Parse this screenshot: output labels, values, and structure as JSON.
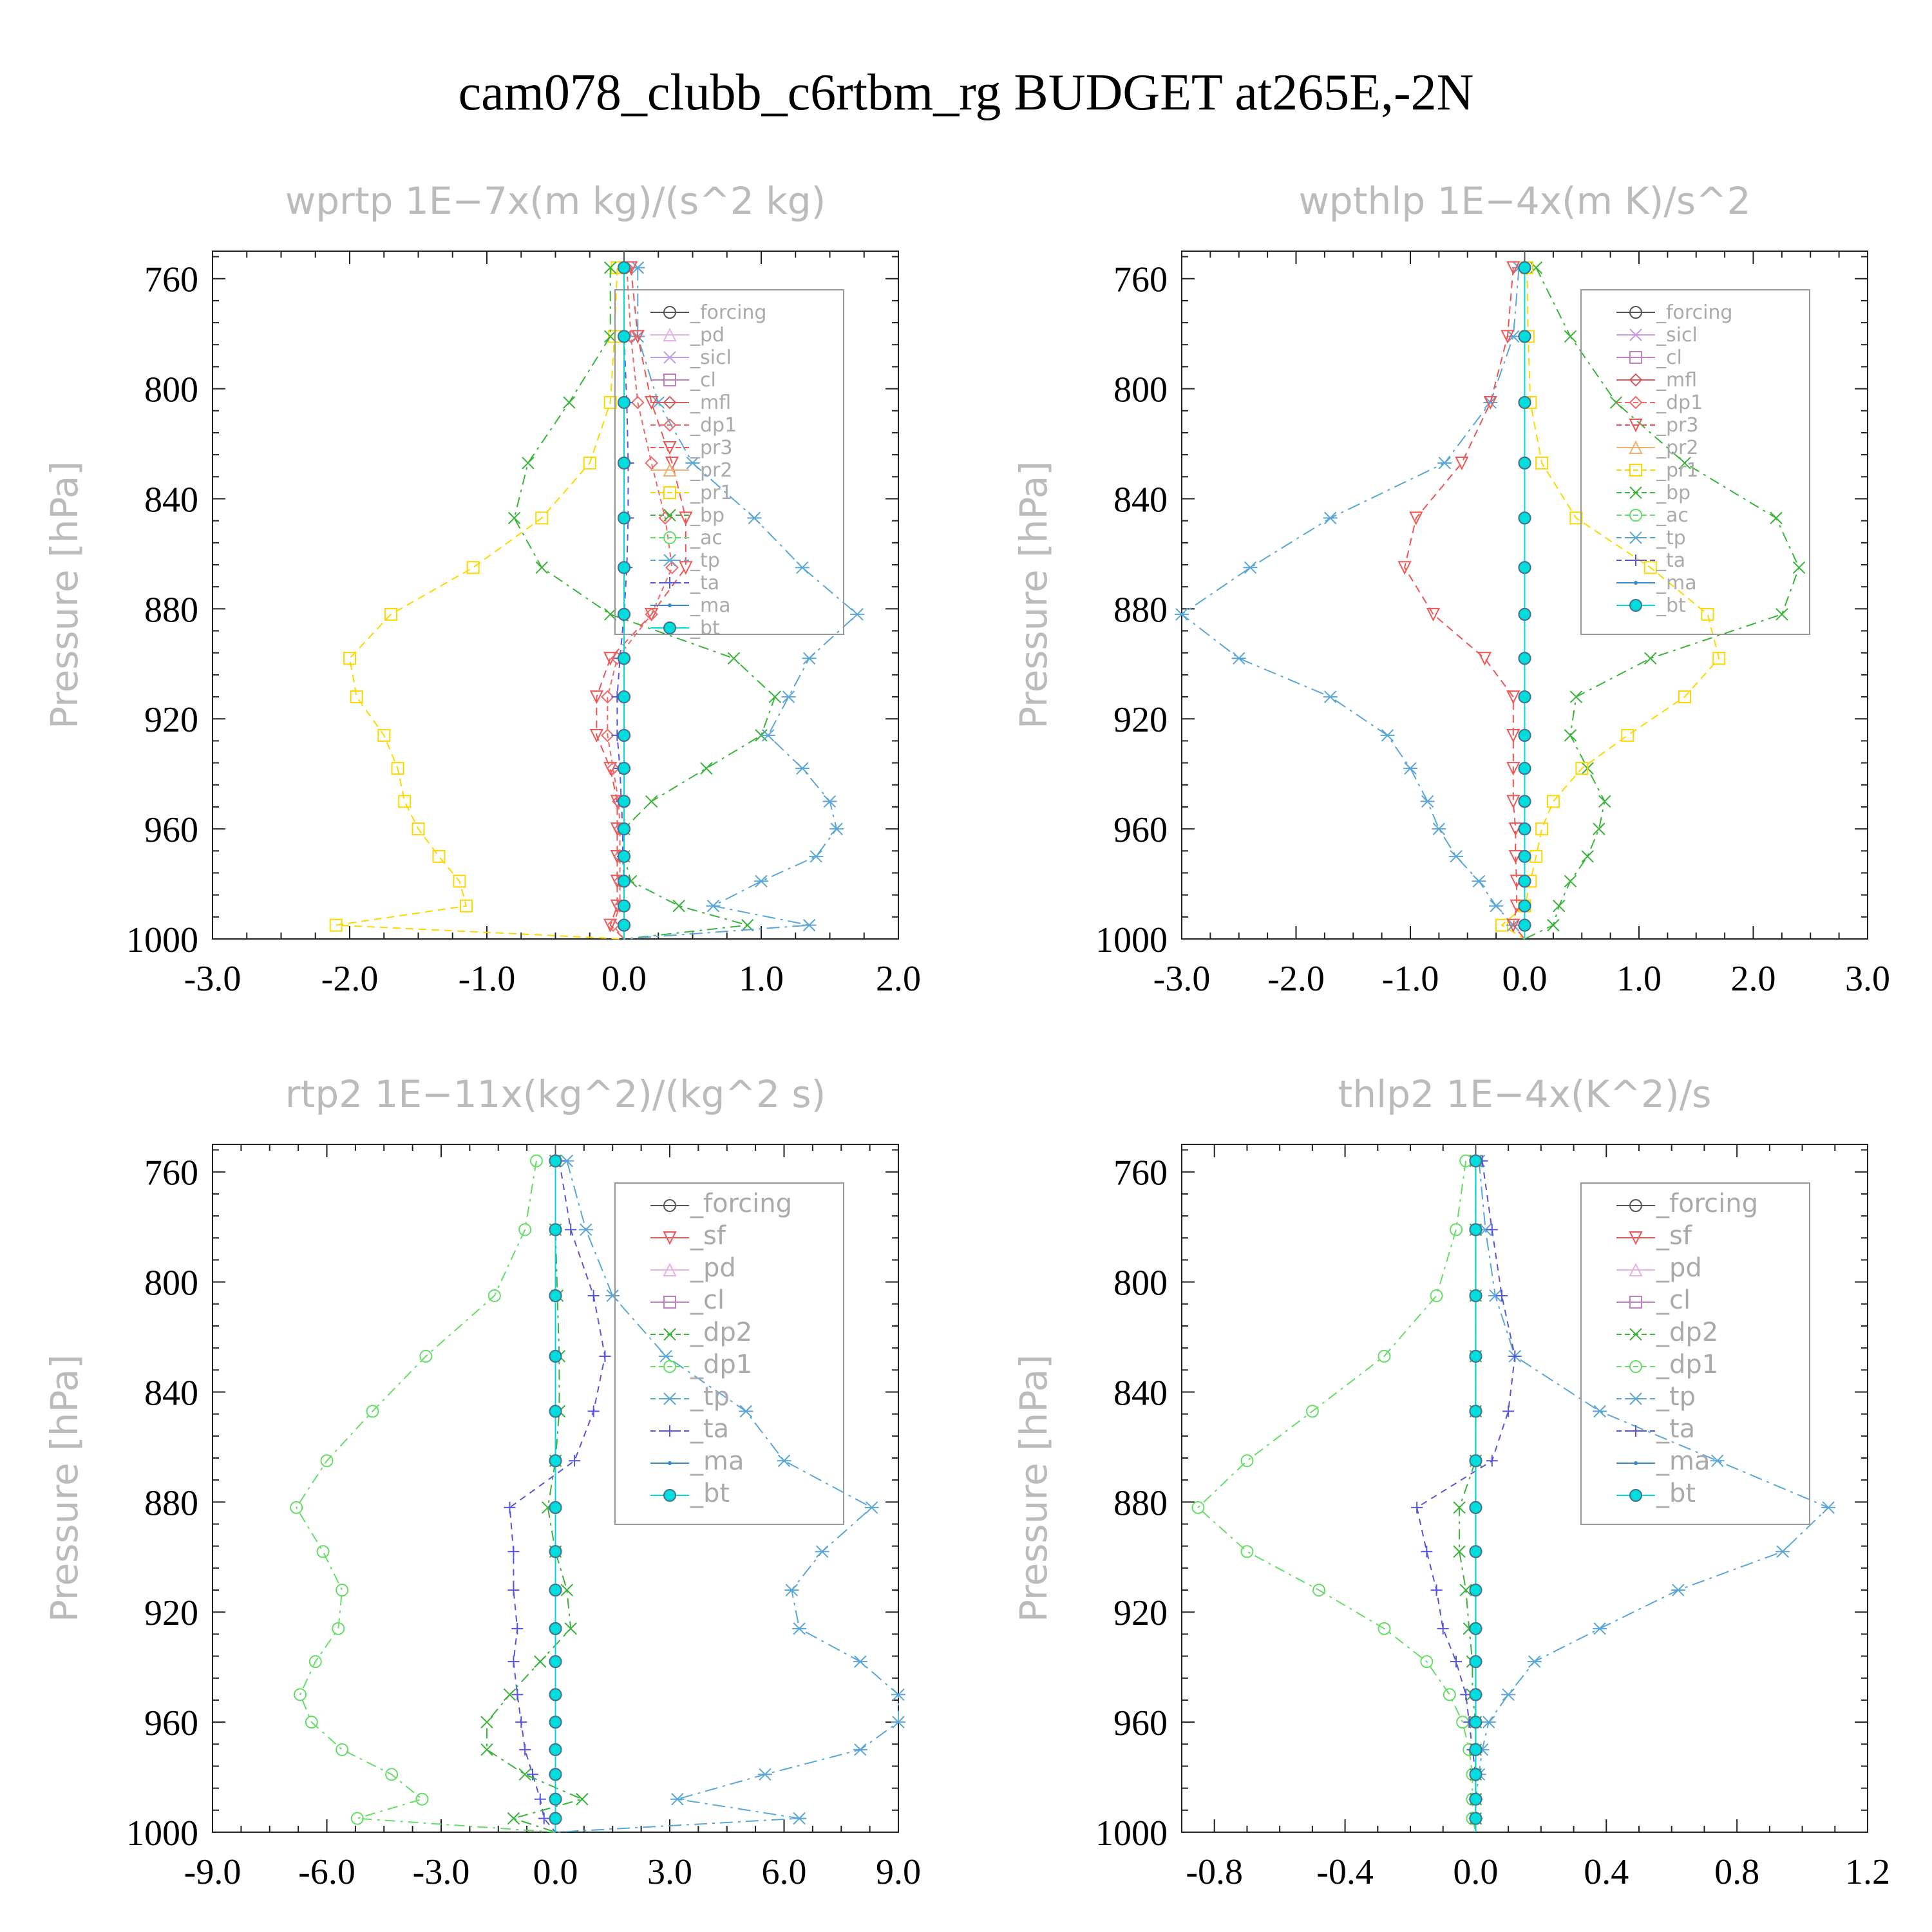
{
  "title": "cam078_clubb_c6rtbm_rg  BUDGET at265E,-2N",
  "colors": {
    "forcing": "#555555",
    "pd": "#e6b3e6",
    "sicl": "#c39be6",
    "cl": "#c080c0",
    "mfl": "#d06060",
    "dp1": "#ee6a6a",
    "pr3": "#ee5555",
    "pr2": "#f0b070",
    "pr1": "#ffd700",
    "bp": "#39b339",
    "ac": "#66dd66",
    "tp": "#5aa6d6",
    "ta": "#5555dd",
    "ma": "#3a8ac8",
    "bt": "#00dddd",
    "sf": "#ee5555",
    "dp2": "#39b339",
    "frame": "#222222",
    "label": "#bbbbbb"
  },
  "levels": [
    756,
    781,
    805,
    827,
    847,
    865,
    882,
    898,
    912,
    926,
    938,
    950,
    960,
    970,
    979,
    988,
    995,
    1000
  ],
  "chart_data": [
    {
      "type": "line",
      "title": "wprtp   1E−7x(m kg)/(s^2 kg)",
      "ylabel": "Pressure [hPa]",
      "xlim": [
        -3,
        2
      ],
      "ylim": [
        1000,
        750
      ],
      "xticks": [
        "-3.0",
        "-2.0",
        "-1.0",
        "0.0",
        "1.0",
        "2.0"
      ],
      "yticks": [
        "760",
        "800",
        "840",
        "880",
        "920",
        "960",
        "1000"
      ],
      "legend": [
        "_forcing",
        "_pd",
        "_sicl",
        "_cl",
        "_mfl",
        "_dp1",
        "_pr3",
        "_pr2",
        "_pr1",
        "_bp",
        "_ac",
        "_tp",
        "_ta",
        "_ma",
        "_bt"
      ],
      "legend_keys": [
        "forcing",
        "pd",
        "sicl",
        "cl",
        "mfl",
        "dp1",
        "pr3",
        "pr2",
        "pr1",
        "bp",
        "ac",
        "tp",
        "ta",
        "ma",
        "bt"
      ],
      "series": [
        {
          "key": "pr1",
          "values": [
            -0.05,
            -0.07,
            -0.1,
            -0.25,
            -0.6,
            -1.1,
            -1.7,
            -2.0,
            -1.95,
            -1.75,
            -1.65,
            -1.6,
            -1.5,
            -1.35,
            -1.2,
            -1.15,
            -2.1,
            0.0
          ]
        },
        {
          "key": "bp",
          "values": [
            -0.1,
            -0.1,
            -0.4,
            -0.7,
            -0.8,
            -0.6,
            -0.1,
            0.8,
            1.1,
            1.0,
            0.6,
            0.2,
            0.0,
            0.0,
            0.05,
            0.4,
            0.9,
            0.0
          ]
        },
        {
          "key": "tp",
          "values": [
            0.1,
            0.1,
            0.25,
            0.5,
            0.95,
            1.3,
            1.7,
            1.35,
            1.2,
            1.05,
            1.3,
            1.5,
            1.55,
            1.4,
            1.0,
            0.65,
            1.35,
            0.0
          ]
        },
        {
          "key": "pr3",
          "values": [
            0.05,
            0.1,
            0.2,
            0.35,
            0.45,
            0.45,
            0.2,
            -0.1,
            -0.2,
            -0.2,
            -0.1,
            -0.05,
            -0.05,
            -0.05,
            -0.05,
            -0.05,
            -0.1,
            0.0
          ]
        },
        {
          "key": "dp1",
          "values": [
            0.02,
            0.05,
            0.1,
            0.2,
            0.3,
            0.35,
            0.2,
            -0.05,
            -0.12,
            -0.12,
            -0.08,
            -0.04,
            -0.03,
            -0.03,
            -0.03,
            -0.03,
            -0.08,
            0.0
          ]
        },
        {
          "key": "ta",
          "values": [
            0.0,
            0.0,
            0.02,
            0.03,
            0.03,
            0.02,
            0.0,
            -0.03,
            -0.05,
            -0.05,
            -0.03,
            -0.02,
            -0.01,
            -0.01,
            0.0,
            0.0,
            0.0,
            0.0
          ]
        },
        {
          "key": "forcing",
          "values": [
            0.0,
            0.0,
            0.0,
            0.0,
            0.0,
            0.0,
            0.0,
            0.0,
            0.0,
            0.0,
            0.0,
            0.0,
            0.0,
            0.0,
            0.0,
            0.0,
            0.0,
            0.0
          ]
        },
        {
          "key": "bt",
          "values": [
            0.0,
            0.0,
            0.0,
            0.0,
            0.0,
            0.0,
            0.0,
            0.0,
            0.0,
            0.0,
            0.0,
            0.0,
            0.0,
            0.0,
            0.0,
            0.0,
            0.0,
            0.0
          ]
        }
      ]
    },
    {
      "type": "line",
      "title": "wpthlp   1E−4x(m K)/s^2",
      "ylabel": "Pressure [hPa]",
      "xlim": [
        -3,
        3
      ],
      "ylim": [
        1000,
        750
      ],
      "xticks": [
        "-3.0",
        "-2.0",
        "-1.0",
        "0.0",
        "1.0",
        "2.0",
        "3.0"
      ],
      "yticks": [
        "760",
        "800",
        "840",
        "880",
        "920",
        "960",
        "1000"
      ],
      "legend": [
        "_forcing",
        "_sicl",
        "_cl",
        "_mfl",
        "_dp1",
        "_pr3",
        "_pr2",
        "_pr1",
        "_bp",
        "_ac",
        "_tp",
        "_ta",
        "_ma",
        "_bt"
      ],
      "legend_keys": [
        "forcing",
        "sicl",
        "cl",
        "mfl",
        "dp1",
        "pr3",
        "pr2",
        "pr1",
        "bp",
        "ac",
        "tp",
        "ta",
        "ma",
        "bt"
      ],
      "series": [
        {
          "key": "bp",
          "values": [
            0.1,
            0.4,
            0.8,
            1.4,
            2.2,
            2.4,
            2.25,
            1.1,
            0.45,
            0.4,
            0.55,
            0.7,
            0.65,
            0.55,
            0.4,
            0.3,
            0.25,
            0.0
          ]
        },
        {
          "key": "pr1",
          "values": [
            0.02,
            0.03,
            0.05,
            0.15,
            0.45,
            1.1,
            1.6,
            1.7,
            1.4,
            0.9,
            0.5,
            0.25,
            0.15,
            0.1,
            0.05,
            0.0,
            -0.2,
            0.0
          ]
        },
        {
          "key": "tp",
          "values": [
            -0.05,
            -0.1,
            -0.3,
            -0.7,
            -1.7,
            -2.4,
            -3.0,
            -2.5,
            -1.7,
            -1.2,
            -1.0,
            -0.85,
            -0.75,
            -0.6,
            -0.4,
            -0.25,
            -0.1,
            0.0
          ]
        },
        {
          "key": "pr3",
          "values": [
            -0.1,
            -0.15,
            -0.3,
            -0.55,
            -0.95,
            -1.05,
            -0.8,
            -0.35,
            -0.1,
            -0.1,
            -0.1,
            -0.1,
            -0.08,
            -0.08,
            -0.07,
            -0.07,
            -0.1,
            0.0
          ]
        },
        {
          "key": "forcing",
          "values": [
            0.0,
            0.0,
            0.0,
            0.0,
            0.0,
            0.0,
            0.0,
            0.0,
            0.0,
            0.0,
            0.0,
            0.0,
            0.0,
            0.0,
            0.0,
            0.0,
            0.0,
            0.0
          ]
        },
        {
          "key": "bt",
          "values": [
            0.0,
            0.0,
            0.0,
            0.0,
            0.0,
            0.0,
            0.0,
            0.0,
            0.0,
            0.0,
            0.0,
            0.0,
            0.0,
            0.0,
            0.0,
            0.0,
            0.0,
            0.0
          ]
        }
      ]
    },
    {
      "type": "line",
      "title": "rtp2   1E−11x(kg^2)/(kg^2 s)",
      "ylabel": "Pressure [hPa]",
      "xlim": [
        -9,
        9
      ],
      "ylim": [
        1000,
        750
      ],
      "xticks": [
        "-9.0",
        "-6.0",
        "-3.0",
        "0.0",
        "3.0",
        "6.0",
        "9.0"
      ],
      "yticks": [
        "760",
        "800",
        "840",
        "880",
        "920",
        "960",
        "1000"
      ],
      "legend": [
        "_forcing",
        "_sf",
        "_pd",
        "_cl",
        "_dp2",
        "_dp1",
        "_tp",
        "_ta",
        "_ma",
        "_bt"
      ],
      "legend_keys": [
        "forcing",
        "sf",
        "pd",
        "cl",
        "dp2",
        "ac",
        "tp",
        "ta",
        "ma",
        "bt"
      ],
      "series": [
        {
          "key": "ac",
          "values": [
            -0.5,
            -0.8,
            -1.6,
            -3.4,
            -4.8,
            -6.0,
            -6.8,
            -6.1,
            -5.6,
            -5.7,
            -6.3,
            -6.7,
            -6.4,
            -5.6,
            -4.3,
            -3.5,
            -5.2,
            0.0
          ]
        },
        {
          "key": "tp",
          "values": [
            0.3,
            0.8,
            1.5,
            2.9,
            5.0,
            6.0,
            8.3,
            7.0,
            6.2,
            6.4,
            8.0,
            9.0,
            9.0,
            8.0,
            5.5,
            3.2,
            6.4,
            0.0
          ]
        },
        {
          "key": "ta",
          "values": [
            0.1,
            0.4,
            1.0,
            1.3,
            1.0,
            0.5,
            -1.2,
            -1.1,
            -1.1,
            -1.0,
            -1.1,
            -1.0,
            -0.9,
            -0.8,
            -0.6,
            -0.4,
            -0.3,
            0.0
          ]
        },
        {
          "key": "dp2",
          "values": [
            0.0,
            0.0,
            0.05,
            0.1,
            0.1,
            0.0,
            -0.2,
            0.0,
            0.3,
            0.4,
            -0.4,
            -1.2,
            -1.8,
            -1.8,
            -0.8,
            0.7,
            -1.1,
            0.0
          ]
        },
        {
          "key": "forcing",
          "values": [
            0.0,
            0.0,
            0.0,
            0.0,
            0.0,
            0.0,
            0.0,
            0.0,
            0.0,
            0.0,
            0.0,
            0.0,
            0.0,
            0.0,
            0.0,
            0.0,
            0.0,
            0.0
          ]
        },
        {
          "key": "bt",
          "values": [
            0.0,
            0.0,
            0.0,
            0.0,
            0.0,
            0.0,
            0.0,
            0.0,
            0.0,
            0.0,
            0.0,
            0.0,
            0.0,
            0.0,
            0.0,
            0.0,
            0.0,
            0.0
          ]
        }
      ]
    },
    {
      "type": "line",
      "title": "thlp2   1E−4x(K^2)/s",
      "ylabel": "Pressure [hPa]",
      "xlim": [
        -0.9,
        1.2
      ],
      "ylim": [
        1000,
        750
      ],
      "xticks": [
        "-0.8",
        "-0.4",
        "0.0",
        "0.4",
        "0.8",
        "1.2"
      ],
      "yticks": [
        "760",
        "800",
        "840",
        "880",
        "920",
        "960",
        "1000"
      ],
      "legend": [
        "_forcing",
        "_sf",
        "_pd",
        "_cl",
        "_dp2",
        "_dp1",
        "_tp",
        "_ta",
        "_ma",
        "_bt"
      ],
      "legend_keys": [
        "forcing",
        "sf",
        "pd",
        "cl",
        "dp2",
        "ac",
        "tp",
        "ta",
        "ma",
        "bt"
      ],
      "series": [
        {
          "key": "ac",
          "values": [
            -0.03,
            -0.06,
            -0.12,
            -0.28,
            -0.5,
            -0.7,
            -0.85,
            -0.7,
            -0.48,
            -0.28,
            -0.15,
            -0.08,
            -0.04,
            -0.02,
            -0.01,
            -0.01,
            -0.01,
            0.0
          ]
        },
        {
          "key": "tp",
          "values": [
            0.01,
            0.03,
            0.06,
            0.12,
            0.38,
            0.74,
            1.08,
            0.94,
            0.62,
            0.38,
            0.18,
            0.1,
            0.04,
            0.02,
            0.01,
            0.0,
            0.0,
            0.0
          ]
        },
        {
          "key": "ta",
          "values": [
            0.02,
            0.05,
            0.08,
            0.12,
            0.1,
            0.05,
            -0.18,
            -0.15,
            -0.12,
            -0.1,
            -0.06,
            -0.03,
            -0.02,
            -0.01,
            0.0,
            0.0,
            0.0,
            0.0
          ]
        },
        {
          "key": "dp2",
          "values": [
            0.0,
            0.0,
            0.0,
            0.0,
            0.0,
            0.0,
            -0.05,
            -0.05,
            -0.03,
            -0.02,
            -0.01,
            -0.01,
            0.0,
            0.0,
            0.0,
            0.0,
            0.0,
            0.0
          ]
        },
        {
          "key": "forcing",
          "values": [
            0.0,
            0.0,
            0.0,
            0.0,
            0.0,
            0.0,
            0.0,
            0.0,
            0.0,
            0.0,
            0.0,
            0.0,
            0.0,
            0.0,
            0.0,
            0.0,
            0.0,
            0.0
          ]
        },
        {
          "key": "bt",
          "values": [
            0.0,
            0.0,
            0.0,
            0.0,
            0.0,
            0.0,
            0.0,
            0.0,
            0.0,
            0.0,
            0.0,
            0.0,
            0.0,
            0.0,
            0.0,
            0.0,
            0.0,
            0.0
          ]
        }
      ]
    }
  ]
}
